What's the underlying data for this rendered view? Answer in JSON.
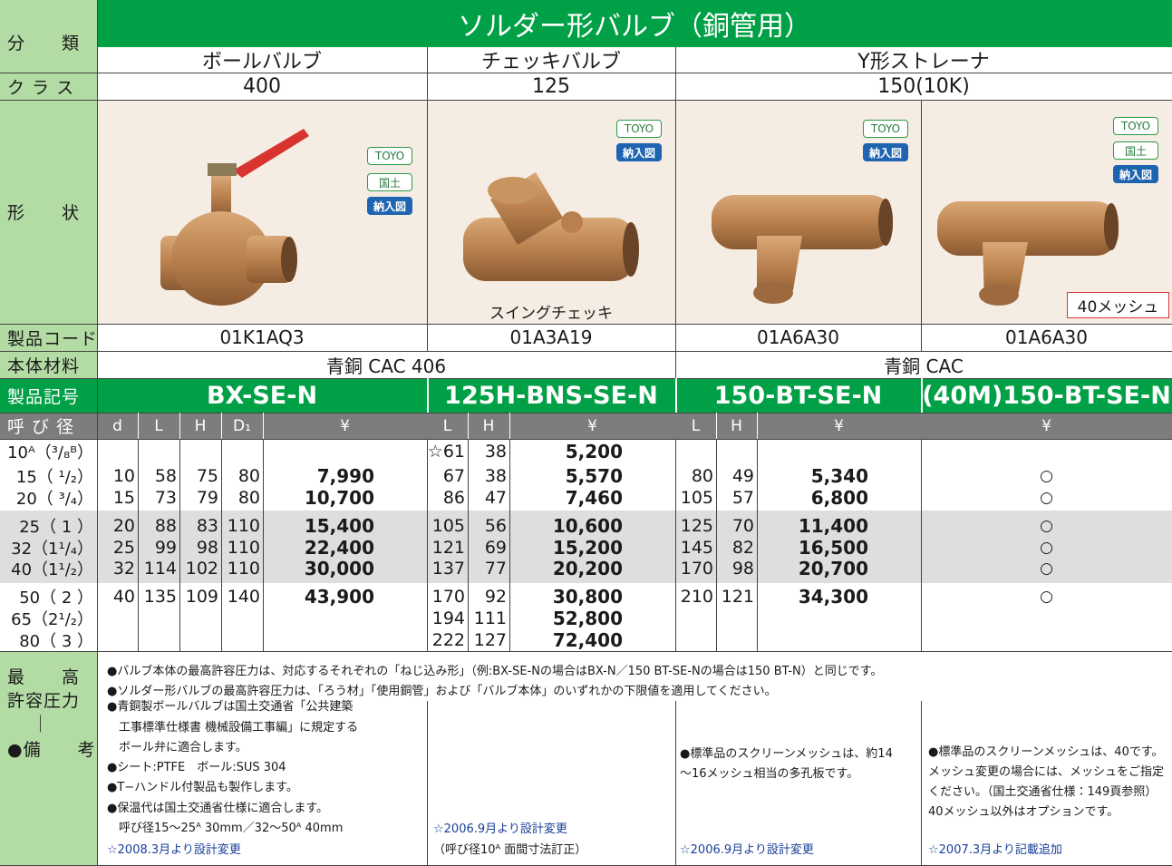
{
  "header": {
    "category_label": "分　　類",
    "title": "ソルダー形バルブ（銅管用）",
    "products": [
      "ボールバルブ",
      "チェッキバルブ",
      "Y形ストレーナ"
    ]
  },
  "class": {
    "label": "ク ラ ス",
    "values": [
      "400",
      "125",
      "150(10K)"
    ]
  },
  "shape": {
    "label": "形　　状",
    "images": [
      {
        "badges": [
          "TOYO",
          "国土",
          "納入図"
        ]
      },
      {
        "badges": [
          "TOYO",
          "納入図"
        ],
        "caption": "スイングチェッキ"
      },
      {
        "badges": [
          "TOYO",
          "納入図"
        ]
      },
      {
        "badges": [
          "TOYO",
          "国土",
          "納入図"
        ],
        "caption": "40メッシュ"
      }
    ]
  },
  "product_code": {
    "label": "製品コード",
    "values": [
      "01K1AQ3",
      "01A3A19",
      "01A6A30",
      "01A6A30"
    ]
  },
  "material": {
    "label": "本体材料",
    "values": [
      "青銅 CAC 406",
      "青銅 CAC"
    ]
  },
  "model": {
    "label": "製品記号",
    "values": [
      "BX-SE-N",
      "125H-BNS-SE-N",
      "150-BT-SE-N",
      "(40M)150-BT-SE-N"
    ]
  },
  "table": {
    "size_label": "呼 び 径",
    "column_headers": [
      [
        "d",
        "L",
        "H",
        "D₁",
        "¥"
      ],
      [
        "L",
        "H",
        "¥"
      ],
      [
        "L",
        "H",
        "¥"
      ],
      [
        "¥"
      ]
    ],
    "rows": [
      {
        "size": "10ᴬ（³/₈ᴮ）",
        "ball": null,
        "check": [
          "☆61",
          38,
          "5,200"
        ],
        "strainer": null,
        "mesh40": null
      },
      {
        "size": "15（ ¹/₂）",
        "ball": [
          10,
          58,
          75,
          80,
          "7,990"
        ],
        "check": [
          67,
          38,
          "5,570"
        ],
        "strainer": [
          80,
          49,
          "5,340"
        ],
        "mesh40": "○"
      },
      {
        "size": "20（ ³/₄）",
        "ball": [
          15,
          73,
          79,
          80,
          "10,700"
        ],
        "check": [
          86,
          47,
          "7,460"
        ],
        "strainer": [
          105,
          57,
          "6,800"
        ],
        "mesh40": "○"
      },
      {
        "size": "25（ 1 ）",
        "ball": [
          20,
          88,
          83,
          110,
          "15,400"
        ],
        "check": [
          105,
          56,
          "10,600"
        ],
        "strainer": [
          125,
          70,
          "11,400"
        ],
        "mesh40": "○"
      },
      {
        "size": "32（1¹/₄）",
        "ball": [
          25,
          99,
          98,
          110,
          "22,400"
        ],
        "check": [
          121,
          69,
          "15,200"
        ],
        "strainer": [
          145,
          82,
          "16,500"
        ],
        "mesh40": "○"
      },
      {
        "size": "40（1¹/₂）",
        "ball": [
          32,
          114,
          102,
          110,
          "30,000"
        ],
        "check": [
          137,
          77,
          "20,200"
        ],
        "strainer": [
          170,
          98,
          "20,700"
        ],
        "mesh40": "○"
      },
      {
        "size": "50（ 2 ）",
        "ball": [
          40,
          135,
          109,
          140,
          "43,900"
        ],
        "check": [
          170,
          92,
          "30,800"
        ],
        "strainer": [
          210,
          121,
          "34,300"
        ],
        "mesh40": "○"
      },
      {
        "size": "65（2¹/₂）",
        "ball": null,
        "check": [
          194,
          111,
          "52,800"
        ],
        "strainer": null,
        "mesh40": null
      },
      {
        "size": "80（ 3 ）",
        "ball": null,
        "check": [
          222,
          127,
          "72,400"
        ],
        "strainer": null,
        "mesh40": null
      }
    ]
  },
  "notes": {
    "label": [
      "最　　高",
      "許容圧力",
      "｜",
      "●備　　考"
    ],
    "general": [
      "●バルブ本体の最高許容圧力は、対応するそれぞれの「ねじ込み形」（例:BX-SE-Nの場合はBX-N／150 BT-SE-Nの場合は150 BT-N）と同じです。",
      "●ソルダー形バルブの最高許容圧力は、「ろう材」「使用銅管」および「バルブ本体」のいずれかの下限値を適用してください。"
    ],
    "columns": [
      [
        "●青銅製ボールバルブは国土交通省「公共建築",
        "　工事標準仕様書 機械設備工事編」に規定する",
        "　ボール弁に適合します。",
        "●シート:PTFE　ボール:SUS 304",
        "●T−ハンドル付製品も製作します。",
        "●保温代は国土交通省仕様に適合します。",
        "　呼び径15～25ᴬ 30mm／32～50ᴬ 40mm",
        "☆2008.3月より設計変更"
      ],
      [
        "☆2006.9月より設計変更",
        "（呼び径10ᴬ 面間寸法訂正）"
      ],
      [
        "●標準品のスクリーンメッシュは、約14",
        "～16メッシュ相当の多孔板です。",
        "☆2006.9月より設計変更"
      ],
      [
        "●標準品のスクリーンメッシュは、40です。",
        "メッシュ変更の場合には、メッシュをご指定",
        "ください。（国土交通省仕様：149頁参照）",
        "40メッシュ以外はオプションです。",
        "☆2007.3月より記載追加"
      ]
    ]
  }
}
